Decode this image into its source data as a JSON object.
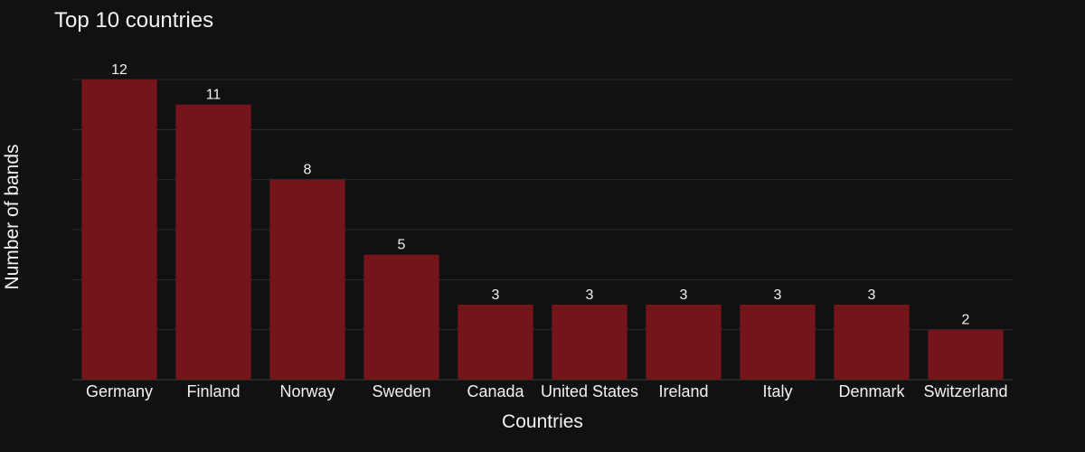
{
  "chart_data": {
    "type": "bar",
    "title": "Top 10 countries",
    "xlabel": "Countries",
    "ylabel": "Number of bands",
    "categories": [
      "Germany",
      "Finland",
      "Norway",
      "Sweden",
      "Canada",
      "United States",
      "Ireland",
      "Italy",
      "Denmark",
      "Switzerland"
    ],
    "values": [
      12,
      11,
      8,
      5,
      3,
      3,
      3,
      3,
      3,
      2
    ],
    "ylim": [
      0,
      12
    ],
    "grid": true,
    "y_tick_labels_shown": false,
    "data_labels_shown": true,
    "colors": {
      "background": "#111111",
      "bar": "#74141b",
      "text": "#f2f2f2",
      "grid": "#2b2b36"
    }
  }
}
